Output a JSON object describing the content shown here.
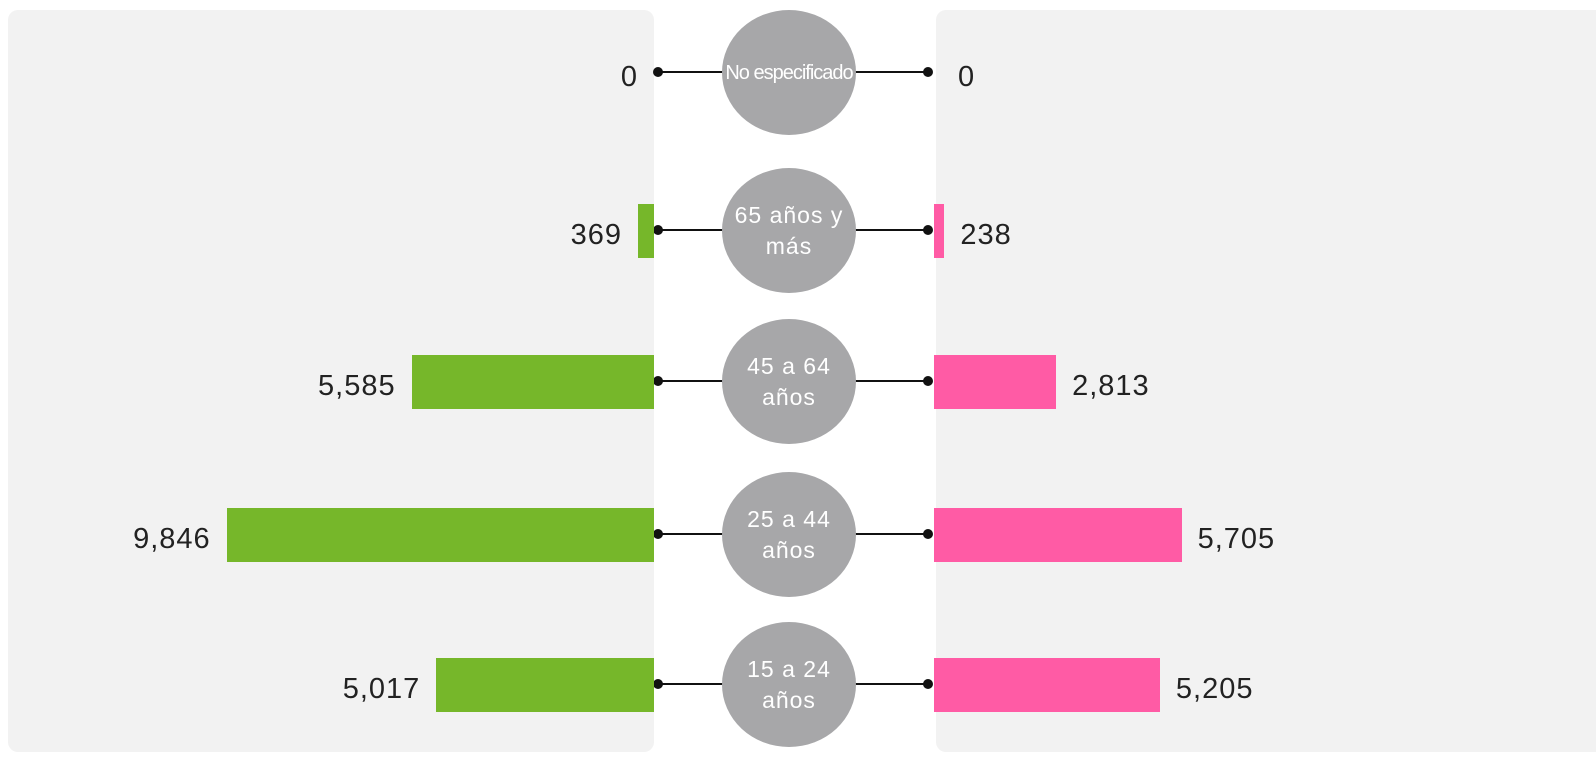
{
  "chart_data": {
    "type": "butterfly",
    "categories": [
      "No especificado",
      "65 años y más",
      "45 a 64 años",
      "25 a 44 años",
      "15 a 24 años"
    ],
    "series": [
      {
        "color": "#76b72a",
        "values": [
          0,
          369,
          5585,
          9846,
          5017
        ],
        "value_labels": [
          "0",
          "369",
          "5,585",
          "9,846",
          "5,017"
        ]
      },
      {
        "color": "#ff5ba5",
        "values": [
          0,
          238,
          2813,
          5705,
          5205
        ],
        "value_labels": [
          "0",
          "238",
          "2,813",
          "5,705",
          "5,205"
        ]
      }
    ]
  }
}
